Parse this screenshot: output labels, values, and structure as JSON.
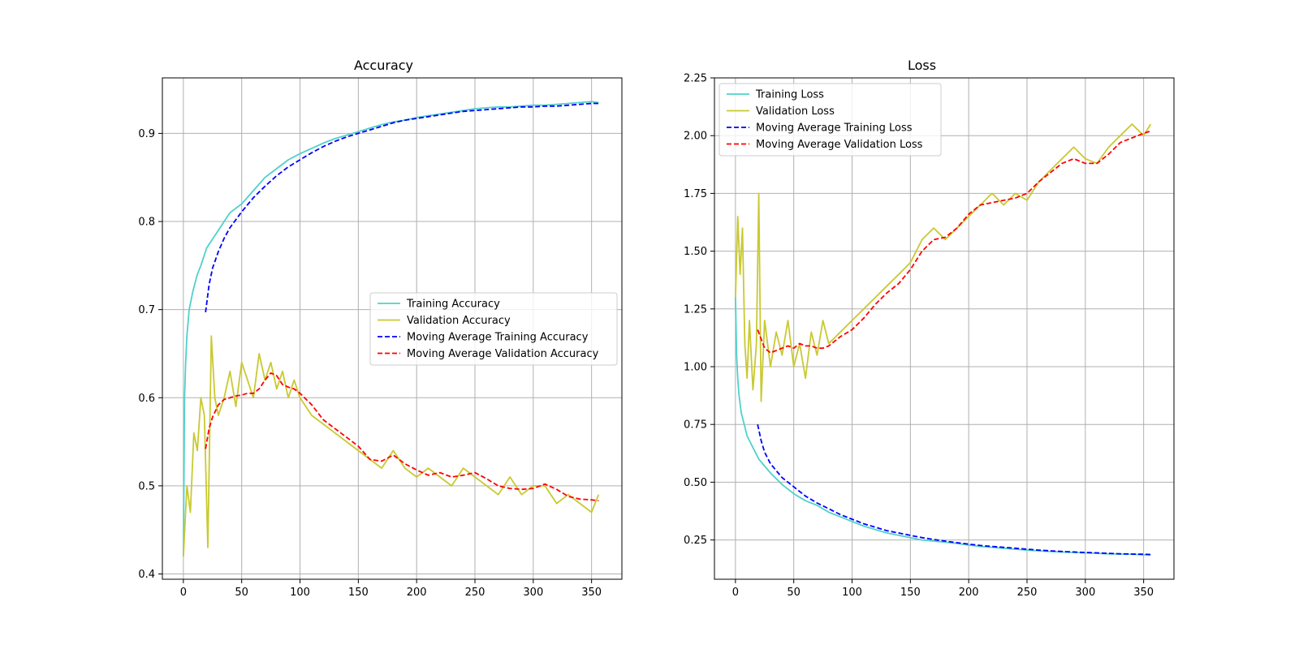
{
  "chart_data": [
    {
      "type": "line",
      "title": "Accuracy",
      "xlabel": "",
      "ylabel": "",
      "xlim": [
        -18,
        376
      ],
      "ylim": [
        0.394,
        0.963
      ],
      "xticks": [
        0,
        50,
        100,
        150,
        200,
        250,
        300,
        350
      ],
      "yticks": [
        0.4,
        0.5,
        0.6,
        0.7,
        0.8,
        0.9
      ],
      "grid": true,
      "legend_position": "center-right",
      "series": [
        {
          "name": "Training Accuracy",
          "color": "#4fd1cb",
          "dash": "solid",
          "x": [
            0,
            1,
            2,
            3,
            5,
            8,
            10,
            12,
            15,
            20,
            25,
            30,
            35,
            40,
            50,
            60,
            70,
            80,
            90,
            100,
            110,
            120,
            130,
            140,
            150,
            160,
            170,
            180,
            190,
            200,
            210,
            220,
            230,
            240,
            250,
            260,
            270,
            280,
            290,
            300,
            310,
            320,
            330,
            340,
            350,
            356
          ],
          "y": [
            0.42,
            0.6,
            0.64,
            0.67,
            0.7,
            0.72,
            0.73,
            0.74,
            0.75,
            0.77,
            0.78,
            0.79,
            0.8,
            0.81,
            0.82,
            0.835,
            0.85,
            0.86,
            0.87,
            0.877,
            0.883,
            0.889,
            0.894,
            0.898,
            0.902,
            0.906,
            0.91,
            0.913,
            0.915,
            0.918,
            0.92,
            0.922,
            0.924,
            0.926,
            0.928,
            0.929,
            0.93,
            0.93,
            0.931,
            0.932,
            0.932,
            0.933,
            0.934,
            0.935,
            0.936,
            0.935
          ]
        },
        {
          "name": "Validation Accuracy",
          "color": "#c9c931",
          "dash": "solid",
          "x": [
            0,
            3,
            6,
            9,
            12,
            15,
            18,
            21,
            24,
            27,
            30,
            35,
            40,
            45,
            50,
            55,
            60,
            65,
            70,
            75,
            80,
            85,
            90,
            95,
            100,
            110,
            120,
            130,
            140,
            150,
            160,
            170,
            180,
            190,
            200,
            210,
            220,
            230,
            240,
            250,
            260,
            270,
            280,
            290,
            300,
            310,
            320,
            330,
            340,
            350,
            356
          ],
          "y": [
            0.42,
            0.5,
            0.47,
            0.56,
            0.54,
            0.6,
            0.58,
            0.43,
            0.67,
            0.6,
            0.58,
            0.6,
            0.63,
            0.59,
            0.64,
            0.62,
            0.6,
            0.65,
            0.62,
            0.64,
            0.61,
            0.63,
            0.6,
            0.62,
            0.6,
            0.58,
            0.57,
            0.56,
            0.55,
            0.54,
            0.53,
            0.52,
            0.54,
            0.52,
            0.51,
            0.52,
            0.51,
            0.5,
            0.52,
            0.51,
            0.5,
            0.49,
            0.51,
            0.49,
            0.5,
            0.5,
            0.48,
            0.49,
            0.48,
            0.47,
            0.49
          ]
        },
        {
          "name": "Moving Average Training Accuracy",
          "color": "#0000ff",
          "dash": "dashed",
          "x": [
            19,
            22,
            25,
            30,
            35,
            40,
            50,
            60,
            70,
            80,
            90,
            100,
            110,
            120,
            130,
            140,
            150,
            160,
            170,
            180,
            190,
            200,
            210,
            220,
            230,
            240,
            250,
            260,
            270,
            280,
            290,
            300,
            310,
            320,
            330,
            340,
            350,
            356
          ],
          "y": [
            0.697,
            0.728,
            0.747,
            0.766,
            0.781,
            0.793,
            0.811,
            0.827,
            0.84,
            0.852,
            0.862,
            0.87,
            0.878,
            0.885,
            0.891,
            0.896,
            0.9,
            0.904,
            0.908,
            0.912,
            0.915,
            0.917,
            0.919,
            0.921,
            0.923,
            0.925,
            0.926,
            0.927,
            0.928,
            0.929,
            0.93,
            0.93,
            0.931,
            0.931,
            0.932,
            0.933,
            0.934,
            0.934
          ]
        },
        {
          "name": "Moving Average Validation Accuracy",
          "color": "#ff0000",
          "dash": "dashed",
          "x": [
            19,
            22,
            25,
            30,
            35,
            40,
            45,
            50,
            55,
            60,
            65,
            70,
            75,
            80,
            85,
            90,
            95,
            100,
            110,
            120,
            130,
            140,
            150,
            160,
            170,
            180,
            190,
            200,
            210,
            220,
            230,
            240,
            250,
            260,
            270,
            280,
            290,
            300,
            310,
            320,
            330,
            340,
            350,
            356
          ],
          "y": [
            0.542,
            0.565,
            0.578,
            0.592,
            0.598,
            0.6,
            0.602,
            0.603,
            0.605,
            0.605,
            0.61,
            0.62,
            0.628,
            0.625,
            0.615,
            0.612,
            0.61,
            0.605,
            0.592,
            0.575,
            0.565,
            0.555,
            0.545,
            0.53,
            0.528,
            0.535,
            0.525,
            0.518,
            0.512,
            0.515,
            0.51,
            0.512,
            0.515,
            0.508,
            0.5,
            0.497,
            0.496,
            0.497,
            0.502,
            0.496,
            0.488,
            0.485,
            0.484,
            0.483
          ]
        }
      ]
    },
    {
      "type": "line",
      "title": "Loss",
      "xlabel": "",
      "ylabel": "",
      "xlim": [
        -18,
        376
      ],
      "ylim": [
        0.08,
        2.25
      ],
      "xticks": [
        0,
        50,
        100,
        150,
        200,
        250,
        300,
        350
      ],
      "yticks": [
        0.25,
        0.5,
        0.75,
        1.0,
        1.25,
        1.5,
        1.75,
        2.0,
        2.25
      ],
      "grid": true,
      "legend_position": "top-left",
      "series": [
        {
          "name": "Training Loss",
          "color": "#4fd1cb",
          "dash": "solid",
          "x": [
            0,
            1,
            2,
            3,
            5,
            8,
            10,
            15,
            20,
            25,
            30,
            40,
            50,
            60,
            70,
            80,
            90,
            100,
            110,
            120,
            130,
            140,
            150,
            160,
            170,
            180,
            190,
            200,
            210,
            220,
            230,
            240,
            250,
            260,
            270,
            280,
            290,
            300,
            310,
            320,
            330,
            340,
            350,
            356
          ],
          "y": [
            1.3,
            1.05,
            0.95,
            0.88,
            0.8,
            0.74,
            0.7,
            0.65,
            0.6,
            0.57,
            0.54,
            0.49,
            0.45,
            0.42,
            0.4,
            0.37,
            0.35,
            0.33,
            0.31,
            0.295,
            0.28,
            0.27,
            0.26,
            0.25,
            0.245,
            0.24,
            0.235,
            0.228,
            0.222,
            0.218,
            0.214,
            0.21,
            0.206,
            0.203,
            0.2,
            0.198,
            0.196,
            0.194,
            0.192,
            0.19,
            0.189,
            0.188,
            0.186,
            0.185
          ]
        },
        {
          "name": "Validation Loss",
          "color": "#c9c931",
          "dash": "solid",
          "x": [
            0,
            2,
            4,
            6,
            8,
            10,
            12,
            15,
            18,
            20,
            22,
            25,
            30,
            35,
            40,
            45,
            50,
            55,
            60,
            65,
            70,
            75,
            80,
            90,
            100,
            110,
            120,
            130,
            140,
            150,
            160,
            170,
            180,
            190,
            200,
            210,
            220,
            230,
            240,
            250,
            260,
            270,
            280,
            290,
            300,
            310,
            320,
            330,
            340,
            350,
            356
          ],
          "y": [
            1.3,
            1.65,
            1.4,
            1.6,
            1.1,
            0.95,
            1.2,
            0.9,
            1.1,
            1.75,
            0.85,
            1.2,
            1.0,
            1.15,
            1.05,
            1.2,
            1.0,
            1.1,
            0.95,
            1.15,
            1.05,
            1.2,
            1.1,
            1.15,
            1.2,
            1.25,
            1.3,
            1.35,
            1.4,
            1.45,
            1.55,
            1.6,
            1.55,
            1.6,
            1.65,
            1.7,
            1.75,
            1.7,
            1.75,
            1.72,
            1.8,
            1.85,
            1.9,
            1.95,
            1.9,
            1.88,
            1.95,
            2.0,
            2.05,
            2.0,
            2.05
          ]
        },
        {
          "name": "Moving Average Training Loss",
          "color": "#0000ff",
          "dash": "dashed",
          "x": [
            19,
            22,
            25,
            30,
            35,
            40,
            50,
            60,
            70,
            80,
            90,
            100,
            110,
            120,
            130,
            140,
            150,
            160,
            170,
            180,
            190,
            200,
            210,
            220,
            230,
            240,
            250,
            260,
            270,
            280,
            290,
            300,
            310,
            320,
            330,
            340,
            350,
            356
          ],
          "y": [
            0.75,
            0.68,
            0.63,
            0.58,
            0.55,
            0.52,
            0.48,
            0.44,
            0.41,
            0.385,
            0.36,
            0.34,
            0.32,
            0.305,
            0.29,
            0.28,
            0.27,
            0.26,
            0.252,
            0.245,
            0.238,
            0.232,
            0.226,
            0.222,
            0.218,
            0.214,
            0.21,
            0.206,
            0.203,
            0.2,
            0.198,
            0.196,
            0.194,
            0.192,
            0.19,
            0.189,
            0.188,
            0.187
          ]
        },
        {
          "name": "Moving Average Validation Loss",
          "color": "#ff0000",
          "dash": "dashed",
          "x": [
            19,
            22,
            25,
            30,
            35,
            40,
            45,
            50,
            55,
            60,
            65,
            70,
            75,
            80,
            90,
            100,
            110,
            120,
            130,
            140,
            150,
            160,
            170,
            180,
            190,
            200,
            210,
            220,
            230,
            240,
            250,
            260,
            270,
            280,
            290,
            300,
            310,
            320,
            330,
            340,
            350,
            356
          ],
          "y": [
            1.16,
            1.12,
            1.08,
            1.06,
            1.07,
            1.08,
            1.09,
            1.08,
            1.1,
            1.09,
            1.09,
            1.08,
            1.08,
            1.09,
            1.13,
            1.16,
            1.21,
            1.27,
            1.32,
            1.36,
            1.42,
            1.5,
            1.55,
            1.56,
            1.6,
            1.66,
            1.7,
            1.71,
            1.72,
            1.73,
            1.75,
            1.8,
            1.84,
            1.88,
            1.9,
            1.88,
            1.88,
            1.92,
            1.97,
            1.99,
            2.01,
            2.02
          ]
        }
      ]
    }
  ]
}
